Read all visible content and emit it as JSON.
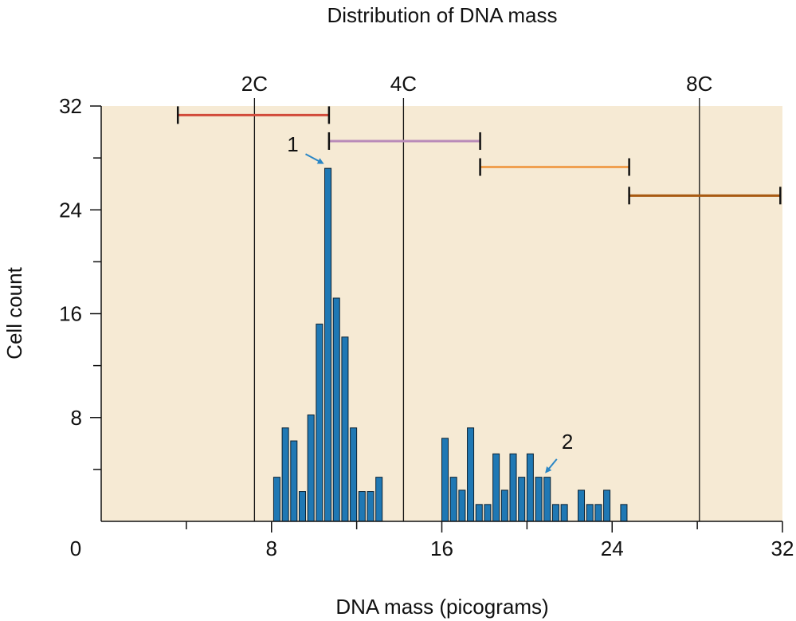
{
  "chart_data": {
    "type": "bar",
    "title": "Distribution of DNA mass",
    "xlabel": "DNA mass (picograms)",
    "ylabel": "Cell count",
    "xlim": [
      0,
      32
    ],
    "ylim": [
      0,
      32
    ],
    "x_ticks_major": [
      0,
      8,
      16,
      24,
      32
    ],
    "x_tick_labels": [
      "0",
      "8",
      "16",
      "24",
      "32"
    ],
    "x_ticks_minor": [
      4,
      12,
      20,
      28
    ],
    "y_ticks_major": [
      8,
      16,
      24,
      32
    ],
    "y_tick_labels": [
      "8",
      "16",
      "24",
      "32"
    ],
    "y_ticks_minor": [
      4,
      12,
      20,
      28
    ],
    "colors": {
      "bar": "#1f78b4",
      "plot_background": "#f6ead4",
      "arrow": "#2a86c5",
      "range_1": "#d24a3a",
      "range_2": "#b98bb9",
      "range_3": "#f0a050",
      "range_4": "#a85a12"
    },
    "ploidy_lines": [
      {
        "label": "2C",
        "x": 7.2
      },
      {
        "label": "4C",
        "x": 14.2
      },
      {
        "label": "8C",
        "x": 28.1
      }
    ],
    "bar_width": 0.3,
    "bars": [
      {
        "x": 8.1,
        "y": 3.4
      },
      {
        "x": 8.5,
        "y": 7.2
      },
      {
        "x": 8.9,
        "y": 6.2
      },
      {
        "x": 9.3,
        "y": 2.3
      },
      {
        "x": 9.7,
        "y": 8.2
      },
      {
        "x": 10.1,
        "y": 15.2
      },
      {
        "x": 10.5,
        "y": 27.2
      },
      {
        "x": 10.9,
        "y": 17.2
      },
      {
        "x": 11.3,
        "y": 14.2
      },
      {
        "x": 11.7,
        "y": 7.2
      },
      {
        "x": 12.1,
        "y": 2.3
      },
      {
        "x": 12.5,
        "y": 2.3
      },
      {
        "x": 12.9,
        "y": 3.4
      },
      {
        "x": 16.0,
        "y": 6.4
      },
      {
        "x": 16.4,
        "y": 3.4
      },
      {
        "x": 16.8,
        "y": 2.4
      },
      {
        "x": 17.2,
        "y": 7.2
      },
      {
        "x": 17.6,
        "y": 1.3
      },
      {
        "x": 18.0,
        "y": 1.3
      },
      {
        "x": 18.4,
        "y": 5.2
      },
      {
        "x": 18.8,
        "y": 2.4
      },
      {
        "x": 19.2,
        "y": 5.2
      },
      {
        "x": 19.6,
        "y": 3.4
      },
      {
        "x": 20.0,
        "y": 5.2
      },
      {
        "x": 20.4,
        "y": 3.4
      },
      {
        "x": 20.8,
        "y": 3.4
      },
      {
        "x": 21.2,
        "y": 1.3
      },
      {
        "x": 21.6,
        "y": 1.3
      },
      {
        "x": 22.4,
        "y": 2.4
      },
      {
        "x": 22.8,
        "y": 1.3
      },
      {
        "x": 23.2,
        "y": 1.3
      },
      {
        "x": 23.6,
        "y": 2.4
      },
      {
        "x": 24.4,
        "y": 1.3
      }
    ],
    "range_bars": [
      {
        "from": 3.6,
        "to": 10.7,
        "y": 31.3,
        "color_key": "range_1"
      },
      {
        "from": 10.7,
        "to": 17.8,
        "y": 29.3,
        "color_key": "range_2"
      },
      {
        "from": 17.8,
        "to": 24.8,
        "y": 27.3,
        "color_key": "range_3"
      },
      {
        "from": 24.8,
        "to": 31.9,
        "y": 25.1,
        "color_key": "range_4"
      }
    ],
    "annotations": [
      {
        "label": "1",
        "label_at": [
          9.0,
          28.5
        ],
        "arrow_from": [
          9.6,
          28.3
        ],
        "arrow_to": [
          10.4,
          27.6
        ]
      },
      {
        "label": "2",
        "label_at": [
          21.9,
          5.6
        ],
        "arrow_from": [
          21.4,
          4.8
        ],
        "arrow_to": [
          20.9,
          3.8
        ]
      }
    ]
  }
}
